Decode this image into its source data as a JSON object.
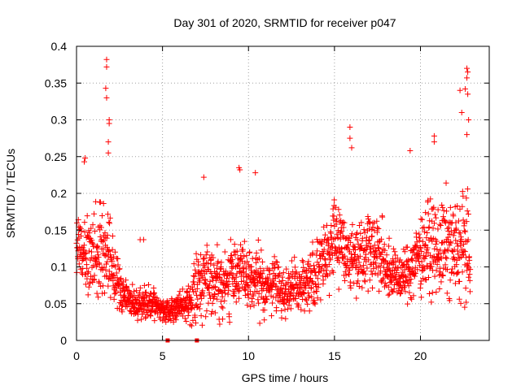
{
  "chart_data": {
    "type": "scatter",
    "title": "Day 301 of 2020, SRMTID for receiver p047",
    "xlabel": "GPS time / hours",
    "ylabel": "SRMTID / TECUs",
    "xlim": [
      0,
      24
    ],
    "ylim": [
      0,
      0.4
    ],
    "xticks": [
      0,
      5,
      10,
      15,
      20
    ],
    "xtick_labels": [
      "0",
      "5",
      "10",
      "15",
      "20"
    ],
    "yticks": [
      0,
      0.05,
      0.1,
      0.15,
      0.2,
      0.25,
      0.3,
      0.35,
      0.4
    ],
    "ytick_labels": [
      "0",
      "0.05",
      "0.1",
      "0.15",
      "0.2",
      "0.25",
      "0.3",
      "0.35",
      "0.4"
    ],
    "grid": true,
    "marker": "+",
    "color": "#ff0000",
    "series_profile": {
      "description": "approximate median level (TECU) and spread vs hour",
      "hours": [
        0,
        0.5,
        1,
        1.5,
        2,
        2.5,
        3,
        3.5,
        4,
        4.5,
        5,
        5.5,
        6,
        6.5,
        7,
        7.5,
        8,
        8.5,
        9,
        9.5,
        10,
        10.5,
        11,
        11.5,
        12,
        12.5,
        13,
        13.5,
        14,
        14.5,
        15,
        15.5,
        16,
        16.5,
        17,
        17.5,
        18,
        18.5,
        19,
        19.5,
        20,
        20.5,
        21,
        21.5,
        22,
        22.5,
        22.9
      ],
      "center": [
        0.13,
        0.11,
        0.12,
        0.13,
        0.11,
        0.07,
        0.055,
        0.05,
        0.05,
        0.048,
        0.042,
        0.04,
        0.045,
        0.05,
        0.07,
        0.09,
        0.085,
        0.07,
        0.09,
        0.1,
        0.075,
        0.085,
        0.07,
        0.08,
        0.065,
        0.07,
        0.075,
        0.08,
        0.09,
        0.12,
        0.14,
        0.13,
        0.11,
        0.12,
        0.13,
        0.12,
        0.1,
        0.09,
        0.085,
        0.1,
        0.12,
        0.13,
        0.12,
        0.13,
        0.12,
        0.13,
        0.11
      ],
      "spread": [
        0.04,
        0.04,
        0.045,
        0.05,
        0.05,
        0.025,
        0.015,
        0.015,
        0.02,
        0.015,
        0.012,
        0.012,
        0.015,
        0.02,
        0.035,
        0.035,
        0.035,
        0.03,
        0.04,
        0.04,
        0.03,
        0.035,
        0.025,
        0.03,
        0.025,
        0.025,
        0.025,
        0.03,
        0.035,
        0.04,
        0.04,
        0.04,
        0.035,
        0.04,
        0.04,
        0.04,
        0.03,
        0.025,
        0.025,
        0.035,
        0.04,
        0.045,
        0.045,
        0.05,
        0.05,
        0.06,
        0.04
      ]
    },
    "outliers": [
      [
        1.75,
        0.382
      ],
      [
        1.75,
        0.372
      ],
      [
        1.7,
        0.343
      ],
      [
        1.75,
        0.33
      ],
      [
        1.9,
        0.3
      ],
      [
        1.9,
        0.295
      ],
      [
        1.85,
        0.27
      ],
      [
        1.85,
        0.255
      ],
      [
        0.5,
        0.248
      ],
      [
        0.45,
        0.243
      ],
      [
        9.45,
        0.235
      ],
      [
        9.5,
        0.232
      ],
      [
        10.4,
        0.228
      ],
      [
        15.9,
        0.29
      ],
      [
        15.9,
        0.275
      ],
      [
        16.0,
        0.262
      ],
      [
        22.7,
        0.37
      ],
      [
        22.75,
        0.365
      ],
      [
        22.7,
        0.357
      ],
      [
        22.6,
        0.342
      ],
      [
        22.3,
        0.34
      ],
      [
        22.75,
        0.335
      ],
      [
        22.4,
        0.31
      ],
      [
        22.8,
        0.3
      ],
      [
        22.7,
        0.28
      ],
      [
        20.8,
        0.278
      ],
      [
        20.8,
        0.27
      ],
      [
        19.4,
        0.258
      ],
      [
        7.4,
        0.222
      ],
      [
        3.7,
        0.137
      ],
      [
        3.9,
        0.137
      ]
    ],
    "zero_markers_hours": [
      5.3,
      7.0
    ]
  }
}
